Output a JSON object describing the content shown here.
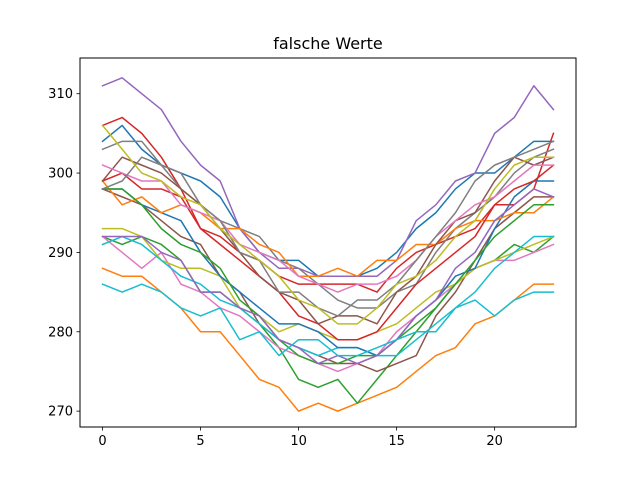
{
  "chart_data": {
    "type": "line",
    "title": "falsche Werte",
    "xlabel": "",
    "ylabel": "",
    "xlim": [
      -1.15,
      24.15
    ],
    "ylim": [
      268.0,
      314.5
    ],
    "xticks": [
      0,
      5,
      10,
      15,
      20
    ],
    "yticks": [
      270,
      280,
      290,
      300,
      310
    ],
    "grid": false,
    "legend": "none",
    "x": [
      0,
      1,
      2,
      3,
      4,
      5,
      6,
      7,
      8,
      9,
      10,
      11,
      12,
      13,
      14,
      15,
      16,
      17,
      18,
      19,
      20,
      21,
      22,
      23
    ],
    "series": [
      {
        "color": "#1f77b4",
        "values": [
          304,
          306,
          303,
          301,
          300,
          299,
          297,
          293,
          290,
          289,
          289,
          287,
          287,
          287,
          288,
          290,
          293,
          295,
          298,
          300,
          300,
          302,
          304,
          304
        ]
      },
      {
        "color": "#ff7f0e",
        "values": [
          288,
          287,
          287,
          285,
          283,
          280,
          280,
          277,
          274,
          273,
          270,
          271,
          270,
          271,
          272,
          273,
          275,
          277,
          278,
          281,
          282,
          284,
          286,
          286
        ]
      },
      {
        "color": "#2ca02c",
        "values": [
          292,
          291,
          292,
          291,
          289,
          285,
          285,
          283,
          281,
          278,
          274,
          273,
          274,
          271,
          274,
          277,
          280,
          283,
          286,
          288,
          289,
          291,
          290,
          292
        ]
      },
      {
        "color": "#d62728",
        "values": [
          306,
          307,
          305,
          302,
          298,
          293,
          292,
          290,
          289,
          287,
          286,
          286,
          286,
          286,
          285,
          288,
          290,
          291,
          292,
          293,
          296,
          296,
          298,
          305
        ]
      },
      {
        "color": "#9467bd",
        "values": [
          311,
          312,
          310,
          308,
          304,
          301,
          299,
          293,
          290,
          288,
          288,
          287,
          287,
          287,
          287,
          289,
          294,
          296,
          299,
          300,
          305,
          307,
          311,
          308
        ]
      },
      {
        "color": "#8c564b",
        "values": [
          298,
          297,
          296,
          294,
          292,
          291,
          287,
          285,
          281,
          279,
          278,
          277,
          276,
          276,
          275,
          276,
          277,
          282,
          285,
          289,
          293,
          295,
          297,
          297
        ]
      },
      {
        "color": "#e377c2",
        "values": [
          292,
          290,
          288,
          290,
          286,
          285,
          283,
          282,
          280,
          278,
          277,
          276,
          275,
          276,
          277,
          280,
          282,
          284,
          286,
          288,
          289,
          289,
          290,
          291
        ]
      },
      {
        "color": "#7f7f7f",
        "values": [
          303,
          304,
          304,
          301,
          298,
          296,
          294,
          293,
          292,
          289,
          288,
          286,
          284,
          283,
          283,
          285,
          286,
          290,
          293,
          295,
          297,
          300,
          302,
          303
        ]
      },
      {
        "color": "#bcbd22",
        "values": [
          293,
          293,
          292,
          289,
          288,
          288,
          287,
          283,
          282,
          280,
          281,
          280,
          279,
          279,
          280,
          281,
          283,
          285,
          286,
          288,
          289,
          290,
          291,
          292
        ]
      },
      {
        "color": "#17becf",
        "values": [
          291,
          292,
          291,
          289,
          287,
          286,
          284,
          283,
          281,
          279,
          278,
          277,
          278,
          278,
          277,
          277,
          279,
          281,
          283,
          285,
          288,
          290,
          292,
          292
        ]
      },
      {
        "color": "#1f77b4",
        "values": [
          298,
          298,
          296,
          295,
          294,
          290,
          287,
          285,
          283,
          281,
          281,
          280,
          278,
          278,
          277,
          279,
          282,
          284,
          287,
          288,
          293,
          297,
          299,
          299
        ]
      },
      {
        "color": "#ff7f0e",
        "values": [
          299,
          296,
          297,
          295,
          296,
          295,
          293,
          293,
          291,
          290,
          287,
          287,
          288,
          287,
          289,
          289,
          291,
          291,
          293,
          294,
          294,
          295,
          295,
          297
        ]
      },
      {
        "color": "#2ca02c",
        "values": [
          298,
          298,
          296,
          293,
          291,
          290,
          288,
          284,
          282,
          279,
          277,
          276,
          276,
          277,
          277,
          279,
          281,
          283,
          286,
          289,
          292,
          294,
          296,
          296
        ]
      },
      {
        "color": "#d62728",
        "values": [
          299,
          300,
          298,
          298,
          297,
          293,
          291,
          289,
          287,
          285,
          282,
          281,
          279,
          279,
          280,
          283,
          286,
          288,
          290,
          292,
          296,
          298,
          299,
          301
        ]
      },
      {
        "color": "#9467bd",
        "values": [
          292,
          292,
          292,
          290,
          289,
          285,
          285,
          283,
          282,
          279,
          278,
          276,
          277,
          276,
          277,
          279,
          282,
          284,
          288,
          290,
          294,
          296,
          298,
          297
        ]
      },
      {
        "color": "#8c564b",
        "values": [
          299,
          302,
          301,
          300,
          298,
          296,
          293,
          290,
          287,
          285,
          284,
          281,
          282,
          282,
          281,
          285,
          287,
          291,
          294,
          295,
          299,
          302,
          301,
          302
        ]
      },
      {
        "color": "#e377c2",
        "values": [
          301,
          300,
          299,
          299,
          296,
          295,
          294,
          291,
          290,
          289,
          287,
          286,
          285,
          286,
          286,
          287,
          289,
          292,
          294,
          296,
          297,
          299,
          301,
          301
        ]
      },
      {
        "color": "#7f7f7f",
        "values": [
          298,
          299,
          302,
          301,
          300,
          296,
          294,
          290,
          289,
          285,
          285,
          283,
          282,
          284,
          284,
          286,
          289,
          292,
          295,
          299,
          301,
          302,
          303,
          304
        ]
      },
      {
        "color": "#bcbd22",
        "values": [
          306,
          303,
          300,
          299,
          297,
          296,
          293,
          291,
          289,
          287,
          284,
          283,
          281,
          281,
          283,
          286,
          287,
          289,
          292,
          294,
          298,
          301,
          302,
          302
        ]
      },
      {
        "color": "#17becf",
        "values": [
          286,
          285,
          286,
          285,
          283,
          282,
          283,
          279,
          280,
          277,
          279,
          279,
          277,
          277,
          278,
          279,
          280,
          280,
          283,
          284,
          282,
          284,
          285,
          285
        ]
      }
    ]
  }
}
